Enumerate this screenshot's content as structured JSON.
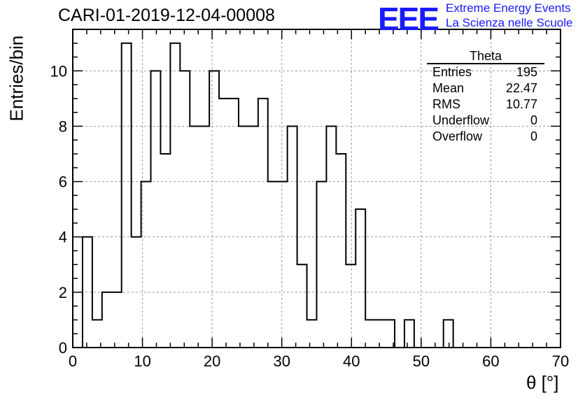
{
  "title": "CARI-01-2019-12-04-00008",
  "logo": {
    "text": "EEE",
    "line1": "Extreme Energy Events",
    "line2": "La Scienza nelle Scuole",
    "color": "#1a1aff"
  },
  "stats_box": {
    "title": "Theta",
    "rows": [
      {
        "label": "Entries",
        "value": "195"
      },
      {
        "label": "Mean",
        "value": "22.47"
      },
      {
        "label": "RMS",
        "value": "10.77"
      },
      {
        "label": "Underflow",
        "value": "0"
      },
      {
        "label": "Overflow",
        "value": "0"
      }
    ]
  },
  "chart_data": {
    "type": "bar",
    "title": "CARI-01-2019-12-04-00008",
    "xlabel": "θ [°]",
    "ylabel": "Entries/bin",
    "xlim": [
      0,
      70
    ],
    "ylim": [
      0,
      11.5
    ],
    "grid": true,
    "bin_width": 1.4,
    "bin_start": 1.4,
    "xticks": [
      0,
      10,
      20,
      30,
      40,
      50,
      60,
      70
    ],
    "yticks": [
      0,
      2,
      4,
      6,
      8,
      10
    ],
    "values": [
      4,
      1,
      2,
      2,
      11,
      4,
      6,
      10,
      7,
      11,
      10,
      8,
      8,
      10,
      9,
      9,
      8,
      8,
      9,
      6,
      6,
      8,
      3,
      1,
      6,
      8,
      7,
      3,
      5,
      1,
      1,
      1,
      0,
      1,
      0,
      0,
      0,
      1,
      0
    ]
  }
}
